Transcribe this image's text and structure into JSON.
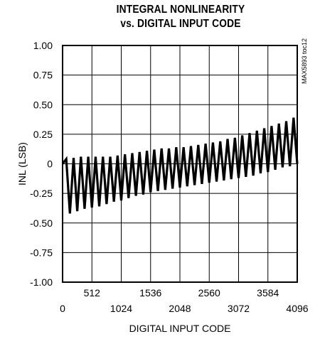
{
  "chart_data": {
    "type": "line",
    "title": [
      "INTEGRAL NONLINEARITY",
      "vs. DIGITAL INPUT CODE"
    ],
    "xlabel": "DIGITAL INPUT CODE",
    "ylabel": "INL (LSB)",
    "xlim": [
      0,
      4096
    ],
    "ylim": [
      -1.0,
      1.0
    ],
    "x_ticks_upper": [
      "512",
      "1536",
      "2560",
      "3584"
    ],
    "x_ticks_upper_values": [
      512,
      1536,
      2560,
      3584
    ],
    "x_ticks_lower": [
      "0",
      "1024",
      "2048",
      "3072",
      "4096"
    ],
    "x_ticks_lower_values": [
      0,
      1024,
      2048,
      3072,
      4096
    ],
    "y_ticks": [
      "1.00",
      "0.75",
      "0.50",
      "0.25",
      "0",
      "-0.25",
      "-0.50",
      "-0.75",
      "-1.00"
    ],
    "y_tick_values": [
      1.0,
      0.75,
      0.5,
      0.25,
      0,
      -0.25,
      -0.5,
      -0.75,
      -1.0
    ],
    "grid": true,
    "annotation": "MAX5893 toc12",
    "series": [
      {
        "period_codes": 128,
        "peaks": [
          [
            64,
            0.04
          ],
          [
            192,
            0.05
          ],
          [
            320,
            0.06
          ],
          [
            448,
            0.06
          ],
          [
            576,
            0.06
          ],
          [
            704,
            0.06
          ],
          [
            832,
            0.06
          ],
          [
            960,
            0.07
          ],
          [
            1088,
            0.08
          ],
          [
            1216,
            0.09
          ],
          [
            1344,
            0.1
          ],
          [
            1472,
            0.11
          ],
          [
            1600,
            0.12
          ],
          [
            1728,
            0.13
          ],
          [
            1856,
            0.13
          ],
          [
            1984,
            0.14
          ],
          [
            2112,
            0.14
          ],
          [
            2240,
            0.15
          ],
          [
            2368,
            0.16
          ],
          [
            2496,
            0.17
          ],
          [
            2624,
            0.18
          ],
          [
            2752,
            0.19
          ],
          [
            2880,
            0.21
          ],
          [
            3008,
            0.22
          ],
          [
            3136,
            0.24
          ],
          [
            3264,
            0.26
          ],
          [
            3392,
            0.28
          ],
          [
            3520,
            0.3
          ],
          [
            3648,
            0.32
          ],
          [
            3776,
            0.34
          ],
          [
            3904,
            0.36
          ],
          [
            4032,
            0.39
          ]
        ],
        "troughs": [
          [
            0,
            0.0
          ],
          [
            128,
            -0.42
          ],
          [
            256,
            -0.4
          ],
          [
            384,
            -0.38
          ],
          [
            512,
            -0.37
          ],
          [
            640,
            -0.36
          ],
          [
            768,
            -0.34
          ],
          [
            896,
            -0.32
          ],
          [
            1024,
            -0.31
          ],
          [
            1152,
            -0.29
          ],
          [
            1280,
            -0.27
          ],
          [
            1408,
            -0.26
          ],
          [
            1536,
            -0.24
          ],
          [
            1664,
            -0.23
          ],
          [
            1792,
            -0.22
          ],
          [
            1920,
            -0.21
          ],
          [
            2048,
            -0.2
          ],
          [
            2176,
            -0.19
          ],
          [
            2304,
            -0.18
          ],
          [
            2432,
            -0.17
          ],
          [
            2560,
            -0.16
          ],
          [
            2688,
            -0.15
          ],
          [
            2816,
            -0.14
          ],
          [
            2944,
            -0.13
          ],
          [
            3072,
            -0.12
          ],
          [
            3200,
            -0.11
          ],
          [
            3328,
            -0.1
          ],
          [
            3456,
            -0.08
          ],
          [
            3584,
            -0.07
          ],
          [
            3712,
            -0.05
          ],
          [
            3840,
            -0.03
          ],
          [
            3968,
            -0.02
          ],
          [
            4096,
            0.0
          ]
        ]
      }
    ]
  }
}
